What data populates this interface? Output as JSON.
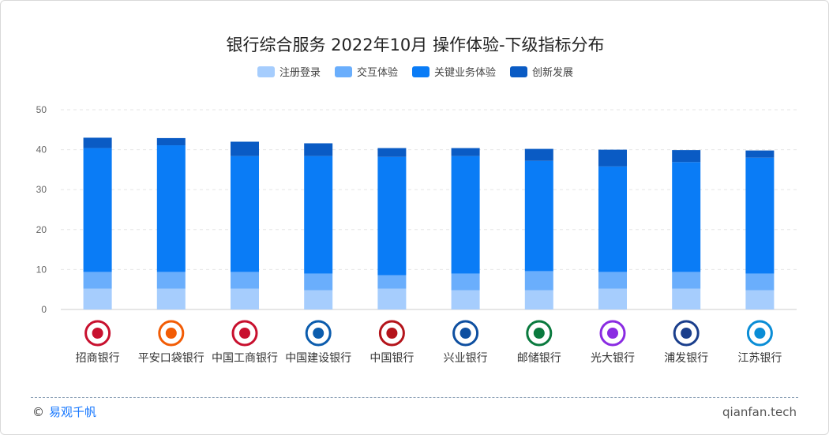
{
  "chart_data": {
    "type": "bar",
    "stacked": true,
    "title": "银行综合服务 2022年10月 操作体验-下级指标分布",
    "categories": [
      "招商银行",
      "平安口袋银行",
      "中国工商银行",
      "中国建设银行",
      "中国银行",
      "兴业银行",
      "邮储银行",
      "光大银行",
      "浦发银行",
      "江苏银行"
    ],
    "ylim": [
      0,
      50
    ],
    "yticks": [
      0,
      10,
      20,
      30,
      40,
      50
    ],
    "grid": true,
    "legend_position": "top-center",
    "series": [
      {
        "name": "注册登录",
        "color": "#a6cdfd",
        "values": [
          5.2,
          5.2,
          5.2,
          4.8,
          5.2,
          4.8,
          4.8,
          5.2,
          5.2,
          4.8
        ]
      },
      {
        "name": "交互体验",
        "color": "#6aaefc",
        "values": [
          4.2,
          4.2,
          4.2,
          4.2,
          3.4,
          4.2,
          4.8,
          4.2,
          4.2,
          4.2
        ]
      },
      {
        "name": "关键业务体验",
        "color": "#0a7cf6",
        "values": [
          31.0,
          31.7,
          29.0,
          29.4,
          29.6,
          29.4,
          27.6,
          26.4,
          27.5,
          29.0
        ]
      },
      {
        "name": "创新发展",
        "color": "#0a5bc4",
        "values": [
          2.6,
          1.8,
          3.6,
          3.2,
          2.2,
          2.0,
          3.0,
          4.2,
          3.0,
          1.8
        ]
      }
    ]
  },
  "footer": {
    "copyright_symbol": "©",
    "brand": "易观千帆",
    "site": "qianfan.tech"
  }
}
